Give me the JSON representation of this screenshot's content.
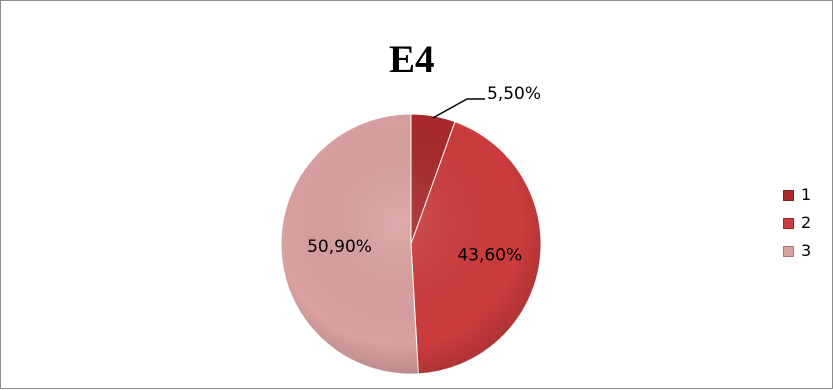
{
  "chart_data": {
    "type": "pie",
    "title": "E4",
    "categories": [
      "1",
      "2",
      "3"
    ],
    "values": [
      5.5,
      43.6,
      50.9
    ],
    "data_labels": [
      "5,50%",
      "43,60%",
      "50,90%"
    ],
    "colors": [
      "#a82a2a",
      "#cc3c3c",
      "#d9a0a0"
    ],
    "start_angle_deg": 0,
    "direction": "clockwise",
    "legend_position": "right",
    "grid": false
  },
  "legend": {
    "items": [
      {
        "label": "1",
        "color": "#a82a2a"
      },
      {
        "label": "2",
        "color": "#cc3c3c"
      },
      {
        "label": "3",
        "color": "#d9a0a0"
      }
    ]
  }
}
